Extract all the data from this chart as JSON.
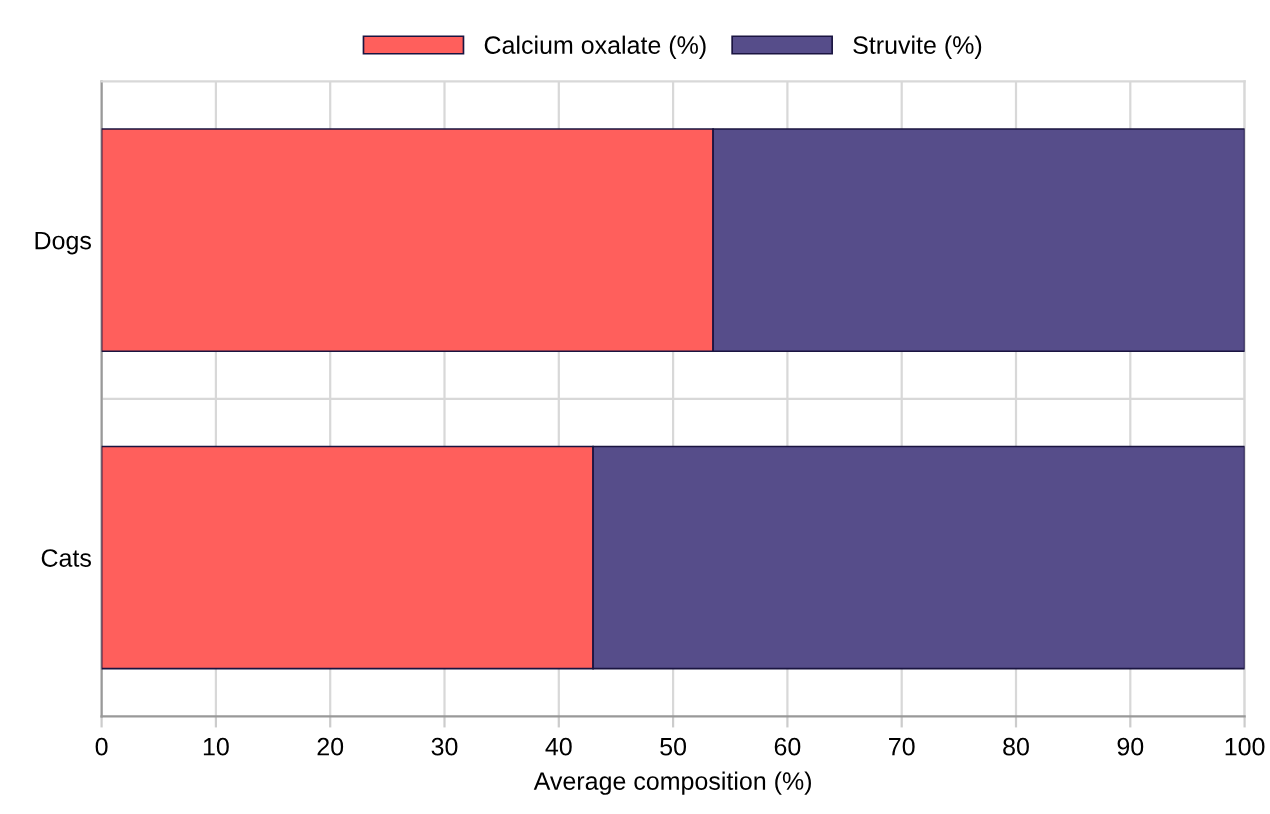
{
  "chart_data": {
    "type": "bar",
    "orientation": "horizontal",
    "stacked": true,
    "xlabel": "Average composition (%)",
    "categories": [
      "Dogs",
      "Cats"
    ],
    "series": [
      {
        "name": "Calcium oxalate (%)",
        "color": "#ff5f5c",
        "values": [
          53.5,
          43
        ]
      },
      {
        "name": "Struvite (%)",
        "color": "#564d8a",
        "values": [
          46.5,
          57
        ]
      }
    ],
    "xlim": [
      0,
      100
    ],
    "xticks": [
      0,
      10,
      20,
      30,
      40,
      50,
      60,
      70,
      80,
      90,
      100
    ],
    "grid": "x",
    "legend": "top"
  }
}
